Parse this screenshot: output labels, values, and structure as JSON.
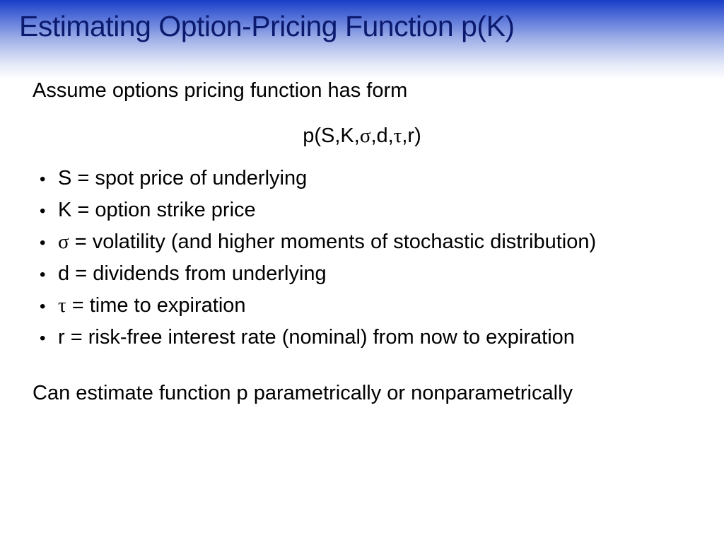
{
  "slide": {
    "title": "Estimating Option-Pricing Function p(K)",
    "intro": "Assume options pricing function has form",
    "formula": {
      "prefix": "p(S,K,",
      "sigma": "σ",
      "sep1": ",d,",
      "tau": "τ",
      "suffix": ",r)"
    },
    "bullets": [
      {
        "symbol": "S",
        "text": " = spot price of underlying"
      },
      {
        "symbol": "K",
        "text": " = option strike price"
      },
      {
        "symbol": "σ",
        "text": " = volatility (and higher moments of stochastic distribution)"
      },
      {
        "symbol": "d",
        "text": " = dividends from underlying"
      },
      {
        "symbol": "τ",
        "text": " = time to expiration"
      },
      {
        "symbol": "r",
        "text": " = risk-free interest rate (nominal) from now to expiration"
      }
    ],
    "bullet_glyph": "•",
    "closing": "Can estimate function p parametrically or nonparametrically"
  },
  "colors": {
    "title_text": "#0b1a6e",
    "band_top": "#1a3ec8",
    "background": "#ffffff"
  }
}
